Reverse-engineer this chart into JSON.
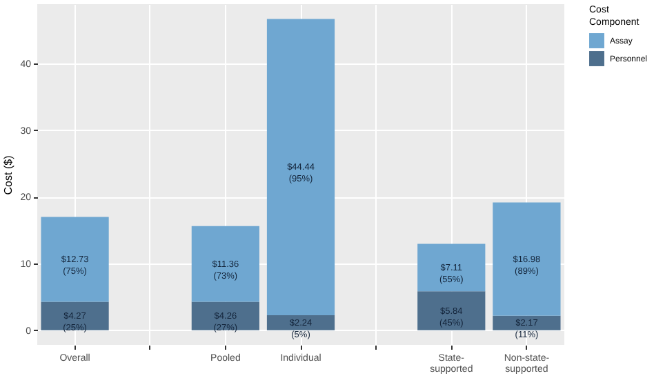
{
  "chart_data": {
    "type": "bar",
    "stacked": true,
    "ylabel": "Cost ($)",
    "legend_title": "Cost Component",
    "legend": "right",
    "categories": [
      "Overall",
      null,
      "Pooled",
      "Individual",
      null,
      "State-supported",
      "Non-state-supported"
    ],
    "series": [
      {
        "name": "Personnel",
        "color": "#4e6f8d",
        "values": [
          4.27,
          null,
          4.26,
          2.24,
          null,
          5.84,
          2.17
        ],
        "value_labels": [
          "$4.27\n(25%)",
          null,
          "$4.26\n(27%)",
          "$2.24\n(5%)",
          null,
          "$5.84\n(45%)",
          "$2.17\n(11%)"
        ]
      },
      {
        "name": "Assay",
        "color": "#6fa7d1",
        "values": [
          12.73,
          null,
          11.36,
          44.44,
          null,
          7.11,
          16.98
        ],
        "value_labels": [
          "$12.73\n(75%)",
          null,
          "$11.36\n(73%)",
          "$44.44\n(95%)",
          null,
          "$7.11\n(55%)",
          "$16.98\n(89%)"
        ]
      }
    ],
    "ylim": [
      -2.2,
      48.9
    ],
    "yticks": [
      0,
      10,
      20,
      30,
      40
    ],
    "grid": true
  }
}
